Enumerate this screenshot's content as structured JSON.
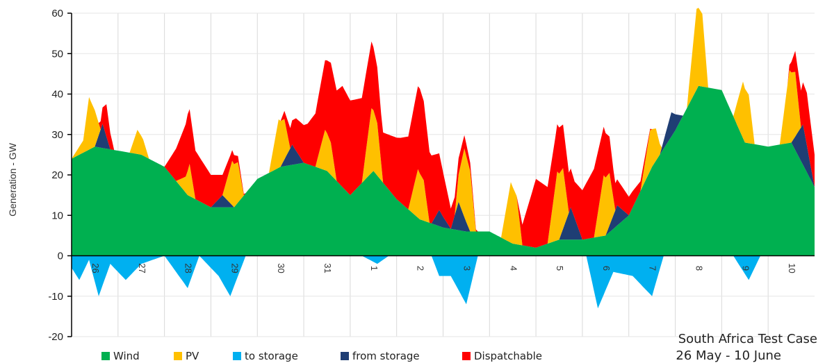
{
  "chart_data": {
    "type": "area",
    "ylabel": "Generation - GW",
    "xlabel": "",
    "ylim": [
      -20,
      60
    ],
    "yticks": [
      -20,
      -10,
      0,
      10,
      20,
      30,
      40,
      50,
      60
    ],
    "grid": true,
    "legend_placement": "bottom",
    "annotation": [
      "South Africa Test Case",
      "26 May - 10 June"
    ],
    "days": [
      "26",
      "27",
      "28",
      "29",
      "30",
      "31",
      "1",
      "2",
      "3",
      "4",
      "5",
      "6",
      "7",
      "8",
      "9",
      "10"
    ],
    "x_unit": "hour",
    "x_range": [
      0,
      384
    ],
    "series": [
      {
        "name": "Wind",
        "color": "#00b050",
        "points": [
          [
            0,
            24
          ],
          [
            12,
            27
          ],
          [
            24,
            26
          ],
          [
            36,
            25
          ],
          [
            48,
            22
          ],
          [
            60,
            15
          ],
          [
            72,
            12
          ],
          [
            84,
            12
          ],
          [
            96,
            19
          ],
          [
            108,
            22
          ],
          [
            120,
            23
          ],
          [
            132,
            21
          ],
          [
            144,
            15
          ],
          [
            156,
            21
          ],
          [
            168,
            14
          ],
          [
            180,
            9
          ],
          [
            192,
            7
          ],
          [
            204,
            6
          ],
          [
            216,
            6
          ],
          [
            228,
            3
          ],
          [
            240,
            2
          ],
          [
            252,
            4
          ],
          [
            264,
            4
          ],
          [
            276,
            5
          ],
          [
            288,
            10
          ],
          [
            300,
            22
          ],
          [
            312,
            31
          ],
          [
            324,
            42
          ],
          [
            336,
            41
          ],
          [
            348,
            28
          ],
          [
            360,
            27
          ],
          [
            372,
            28
          ],
          [
            384,
            17
          ]
        ]
      },
      {
        "name": "PV",
        "color": "#ffc000",
        "points": [
          [
            0,
            0
          ],
          [
            6,
            3
          ],
          [
            9,
            13
          ],
          [
            12,
            9
          ],
          [
            15,
            0
          ],
          [
            30,
            0
          ],
          [
            34,
            6
          ],
          [
            37,
            4
          ],
          [
            40,
            0
          ],
          [
            54,
            0
          ],
          [
            59,
            4
          ],
          [
            61,
            8
          ],
          [
            64,
            0
          ],
          [
            78,
            0
          ],
          [
            83,
            11
          ],
          [
            86,
            10
          ],
          [
            89,
            0
          ],
          [
            102,
            0
          ],
          [
            107,
            12
          ],
          [
            110,
            10
          ],
          [
            113,
            0
          ],
          [
            126,
            0
          ],
          [
            131,
            10
          ],
          [
            134,
            8
          ],
          [
            137,
            0
          ],
          [
            150,
            0
          ],
          [
            155,
            16
          ],
          [
            158,
            13
          ],
          [
            161,
            0
          ],
          [
            174,
            0
          ],
          [
            179,
            12
          ],
          [
            182,
            10
          ],
          [
            185,
            0
          ],
          [
            198,
            0
          ],
          [
            203,
            17
          ],
          [
            206,
            15
          ],
          [
            209,
            0
          ],
          [
            222,
            0
          ],
          [
            227,
            15
          ],
          [
            230,
            12
          ],
          [
            233,
            0
          ],
          [
            246,
            0
          ],
          [
            251,
            17
          ],
          [
            254,
            15
          ],
          [
            257,
            0
          ],
          [
            270,
            0
          ],
          [
            275,
            15
          ],
          [
            278,
            13
          ],
          [
            281,
            0
          ],
          [
            294,
            0
          ],
          [
            299,
            10
          ],
          [
            302,
            8
          ],
          [
            305,
            0
          ],
          [
            318,
            0
          ],
          [
            323,
            20
          ],
          [
            326,
            18
          ],
          [
            329,
            0
          ],
          [
            342,
            0
          ],
          [
            347,
            14
          ],
          [
            350,
            12
          ],
          [
            353,
            0
          ],
          [
            366,
            0
          ],
          [
            371,
            18
          ],
          [
            374,
            16
          ],
          [
            377,
            0
          ],
          [
            384,
            0
          ]
        ]
      },
      {
        "name": "to storage",
        "color": "#00b0f0",
        "points": [
          [
            0,
            -3
          ],
          [
            4,
            -6
          ],
          [
            9,
            -1
          ],
          [
            14,
            -10
          ],
          [
            20,
            -2
          ],
          [
            28,
            -6
          ],
          [
            36,
            -2
          ],
          [
            48,
            0
          ],
          [
            60,
            -8
          ],
          [
            66,
            0
          ],
          [
            76,
            -5
          ],
          [
            82,
            -10
          ],
          [
            90,
            0
          ],
          [
            150,
            0
          ],
          [
            158,
            -2
          ],
          [
            164,
            0
          ],
          [
            186,
            0
          ],
          [
            190,
            -5
          ],
          [
            196,
            -5
          ],
          [
            204,
            -12
          ],
          [
            210,
            0
          ],
          [
            266,
            0
          ],
          [
            272,
            -13
          ],
          [
            280,
            -4
          ],
          [
            290,
            -5
          ],
          [
            300,
            -10
          ],
          [
            306,
            0
          ],
          [
            342,
            0
          ],
          [
            350,
            -6
          ],
          [
            356,
            0
          ],
          [
            384,
            0
          ]
        ]
      },
      {
        "name": "from storage",
        "color": "#1f3e74",
        "points": [
          [
            0,
            0
          ],
          [
            12,
            0
          ],
          [
            16,
            6
          ],
          [
            20,
            0
          ],
          [
            36,
            0
          ],
          [
            72,
            0
          ],
          [
            78,
            3
          ],
          [
            84,
            0
          ],
          [
            108,
            0
          ],
          [
            114,
            5
          ],
          [
            120,
            0
          ],
          [
            186,
            0
          ],
          [
            190,
            4
          ],
          [
            196,
            0
          ],
          [
            200,
            7
          ],
          [
            206,
            0
          ],
          [
            252,
            0
          ],
          [
            258,
            8
          ],
          [
            264,
            0
          ],
          [
            276,
            0
          ],
          [
            282,
            5
          ],
          [
            288,
            0
          ],
          [
            304,
            0
          ],
          [
            310,
            6
          ],
          [
            316,
            0
          ],
          [
            372,
            0
          ],
          [
            378,
            10
          ],
          [
            384,
            0
          ]
        ]
      },
      {
        "name": "Dispatchable",
        "color": "#ff0000",
        "points": [
          [
            0,
            0
          ],
          [
            14,
            0
          ],
          [
            18,
            8
          ],
          [
            22,
            0
          ],
          [
            48,
            0
          ],
          [
            54,
            8
          ],
          [
            60,
            14
          ],
          [
            66,
            11
          ],
          [
            72,
            8
          ],
          [
            82,
            3
          ],
          [
            90,
            0
          ],
          [
            108,
            0
          ],
          [
            116,
            8
          ],
          [
            122,
            10
          ],
          [
            132,
            18
          ],
          [
            140,
            25
          ],
          [
            150,
            21
          ],
          [
            160,
            12
          ],
          [
            170,
            16
          ],
          [
            180,
            21
          ],
          [
            190,
            14
          ],
          [
            196,
            5
          ],
          [
            204,
            3
          ],
          [
            210,
            0
          ],
          [
            230,
            0
          ],
          [
            240,
            17
          ],
          [
            250,
            12
          ],
          [
            260,
            9
          ],
          [
            270,
            17
          ],
          [
            280,
            7
          ],
          [
            290,
            4
          ],
          [
            300,
            0
          ],
          [
            370,
            0
          ],
          [
            380,
            13
          ],
          [
            384,
            8
          ]
        ]
      }
    ]
  },
  "legend": [
    {
      "label": "Wind",
      "color": "#00b050"
    },
    {
      "label": "PV",
      "color": "#ffc000"
    },
    {
      "label": "to storage",
      "color": "#00b0f0"
    },
    {
      "label": "from storage",
      "color": "#1f3e74"
    },
    {
      "label": "Dispatchable",
      "color": "#ff0000"
    }
  ]
}
